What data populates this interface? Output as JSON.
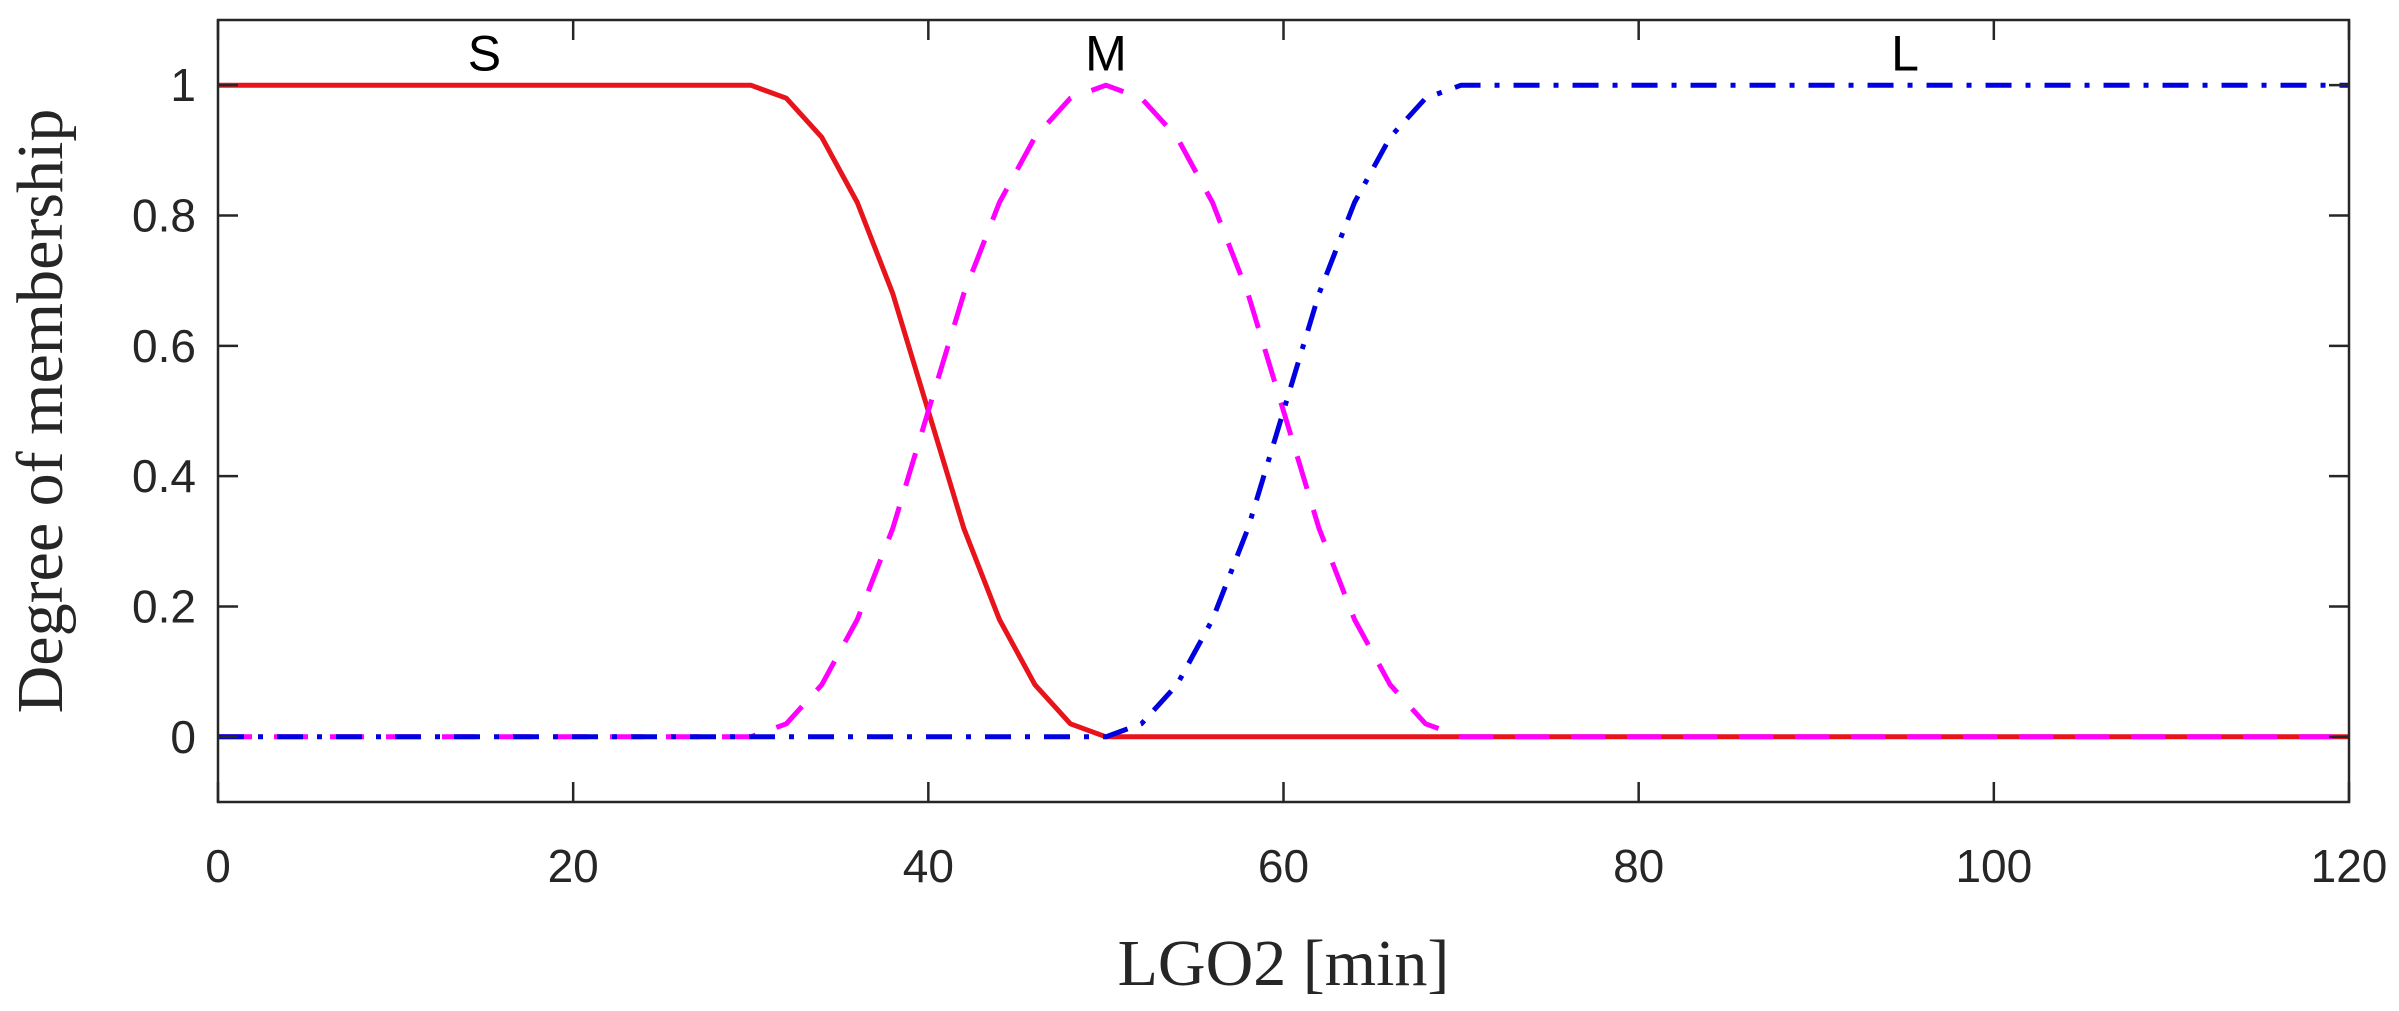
{
  "chart_data": {
    "type": "line",
    "xlabel": "LGO2 [min]",
    "ylabel": "Degree of membership",
    "xlim": [
      0,
      120
    ],
    "ylim": [
      -0.1,
      1.1
    ],
    "xticks": [
      0,
      20,
      40,
      60,
      80,
      100,
      120
    ],
    "yticks": [
      0,
      0.2,
      0.4,
      0.6,
      0.8,
      1
    ],
    "ytick_labels": [
      "0",
      "0.2",
      "0.4",
      "0.6",
      "0.8",
      "1"
    ],
    "grid": false,
    "legend": "none",
    "series": [
      {
        "name": "S",
        "color": "#e8141b",
        "line_style": "solid",
        "x": [
          0,
          30,
          32,
          34,
          36,
          38,
          40,
          42,
          44,
          46,
          48,
          50,
          60,
          70,
          80,
          90,
          100,
          110,
          120
        ],
        "y": [
          1,
          1,
          0.98,
          0.92,
          0.82,
          0.68,
          0.5,
          0.32,
          0.18,
          0.08,
          0.02,
          0,
          0,
          0,
          0,
          0,
          0,
          0,
          0
        ]
      },
      {
        "name": "M",
        "color": "#ff00ff",
        "line_style": "dashed",
        "x": [
          0,
          10,
          20,
          30,
          32,
          34,
          36,
          38,
          40,
          42,
          44,
          46,
          48,
          50,
          52,
          54,
          56,
          58,
          60,
          62,
          64,
          66,
          68,
          70,
          80,
          90,
          100,
          110,
          120
        ],
        "y": [
          0,
          0,
          0,
          0,
          0.02,
          0.08,
          0.18,
          0.32,
          0.5,
          0.68,
          0.82,
          0.92,
          0.98,
          1,
          0.98,
          0.92,
          0.82,
          0.68,
          0.5,
          0.32,
          0.18,
          0.08,
          0.02,
          0,
          0,
          0,
          0,
          0,
          0
        ]
      },
      {
        "name": "L",
        "color": "#0000e0",
        "line_style": "dashdot",
        "x": [
          0,
          10,
          20,
          30,
          40,
          50,
          52,
          54,
          56,
          58,
          60,
          62,
          64,
          66,
          68,
          70,
          80,
          90,
          100,
          110,
          120
        ],
        "y": [
          0,
          0,
          0,
          0,
          0,
          0,
          0.02,
          0.08,
          0.18,
          0.32,
          0.5,
          0.68,
          0.82,
          0.92,
          0.98,
          1,
          1,
          1,
          1,
          1,
          1
        ]
      }
    ],
    "annotations": [
      {
        "text": "S",
        "x": 15,
        "y": 1.05
      },
      {
        "text": "M",
        "x": 50,
        "y": 1.05
      },
      {
        "text": "L",
        "x": 95,
        "y": 1.05
      }
    ]
  }
}
